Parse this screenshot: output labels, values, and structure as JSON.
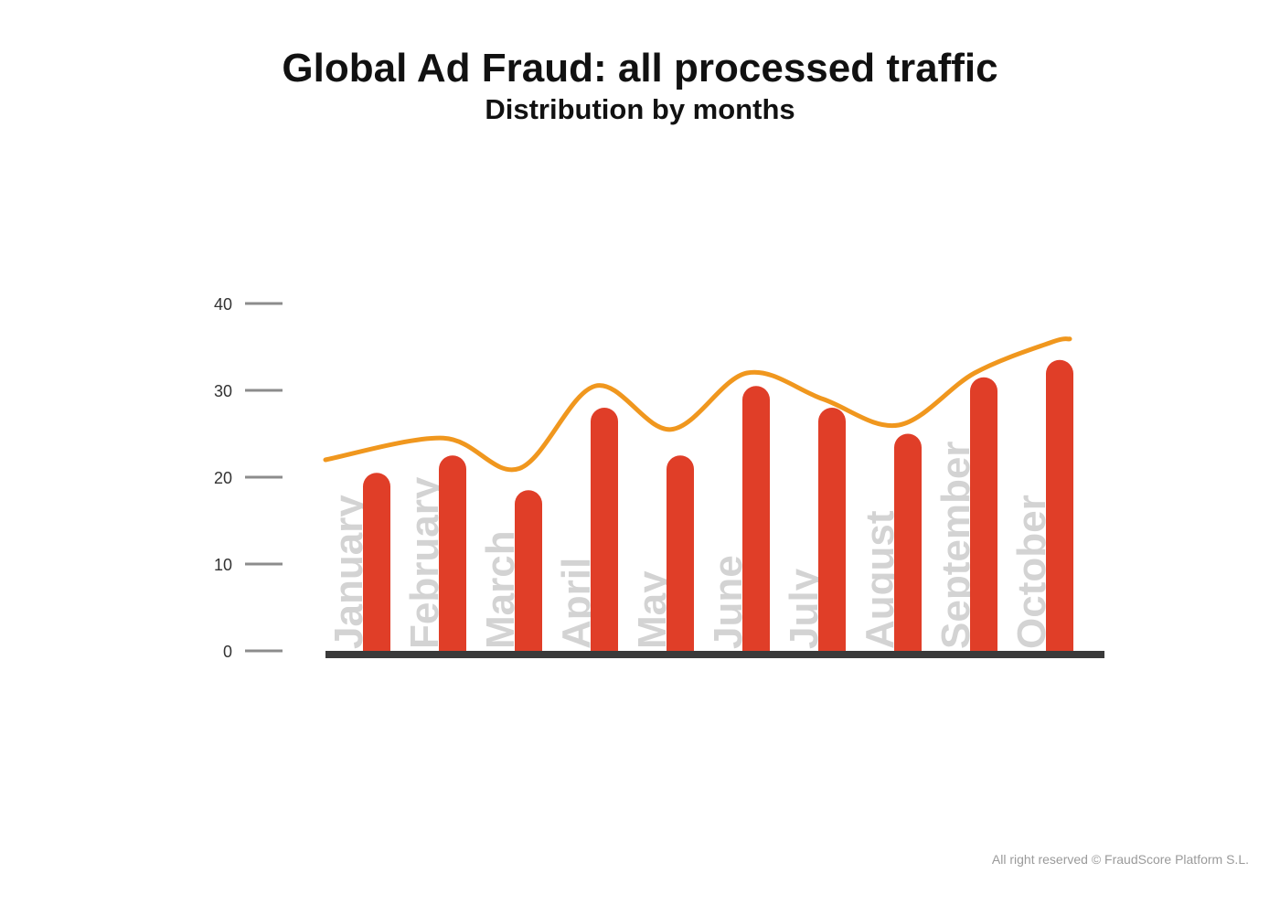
{
  "title": "Global Ad Fraud: all processed traffic",
  "subtitle": "Distribution by months",
  "copyright": "All right reserved © FraudScore Platform S.L.",
  "colors": {
    "bar": "#e03e28",
    "trend": "#f0971e",
    "month_label": "#d3d3d3",
    "axis": "#3a3a3a",
    "tick": "#8c8c8c",
    "tick_text": "#333333"
  },
  "chart_data": {
    "type": "bar",
    "categories": [
      "January",
      "February",
      "March",
      "April",
      "May",
      "June",
      "July",
      "August",
      "September",
      "October"
    ],
    "values": [
      20.5,
      22.5,
      18.5,
      28,
      22.5,
      30.5,
      28,
      25,
      31.5,
      33.5
    ],
    "trend_line": [
      22,
      24.5,
      21,
      30.5,
      25.5,
      32,
      29,
      26,
      32,
      35.5
    ],
    "yticks": [
      0,
      10,
      20,
      30,
      40
    ],
    "ylim": [
      0,
      40
    ],
    "grid": false,
    "legend": "none"
  }
}
